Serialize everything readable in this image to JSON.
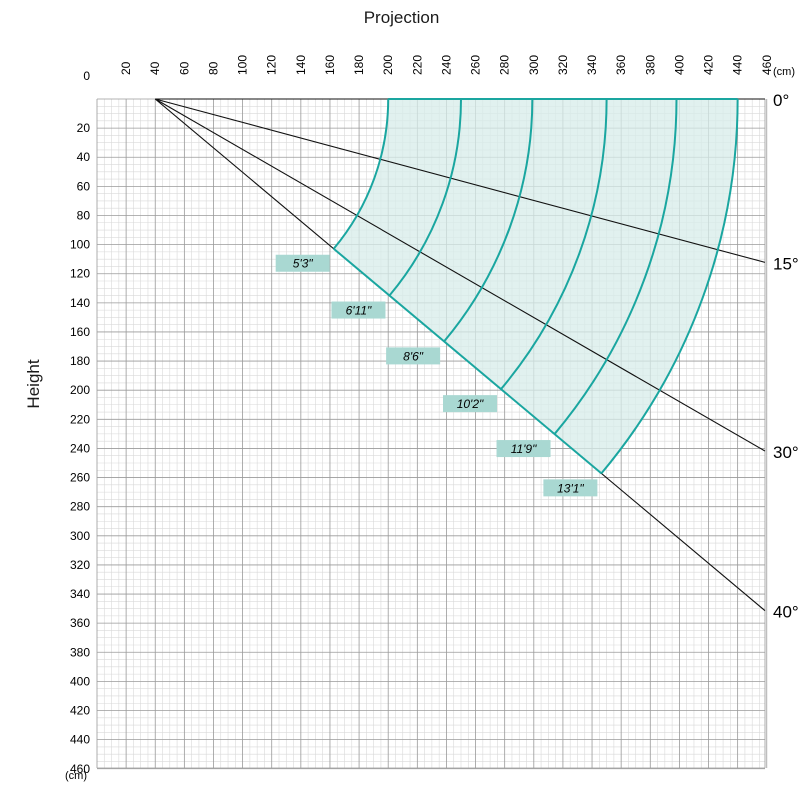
{
  "chart_data": {
    "type": "line",
    "title": "",
    "xlabel": "Projection",
    "ylabel": "Height",
    "x_unit": "(cm)",
    "y_unit": "(cm)",
    "x_ticks": [
      "20",
      "40",
      "60",
      "80",
      "100",
      "120",
      "140",
      "160",
      "180",
      "200",
      "220",
      "240",
      "260",
      "280",
      "300",
      "320",
      "340",
      "360",
      "380",
      "400",
      "420",
      "440",
      "460"
    ],
    "y_ticks": [
      "0",
      "20",
      "40",
      "60",
      "80",
      "100",
      "120",
      "140",
      "160",
      "180",
      "200",
      "220",
      "240",
      "260",
      "280",
      "300",
      "320",
      "340",
      "360",
      "380",
      "400",
      "420",
      "440",
      "460"
    ],
    "xlim": [
      0,
      460
    ],
    "ylim": [
      0,
      460
    ],
    "grid": true,
    "origin": [
      40,
      0
    ],
    "angle_lines": [
      {
        "label": "0°",
        "angle": 0
      },
      {
        "label": "15°",
        "angle": 15
      },
      {
        "label": "30°",
        "angle": 30
      },
      {
        "label": "40°",
        "angle": 40
      }
    ],
    "range_arcs": [
      {
        "label": "5'3\"",
        "radius": 160
      },
      {
        "label": "6'11\"",
        "radius": 210
      },
      {
        "label": "8'6\"",
        "radius": 259
      },
      {
        "label": "10'2\"",
        "radius": 310
      },
      {
        "label": "11'9\"",
        "radius": 358
      },
      {
        "label": "13'1\"",
        "radius": 400
      }
    ],
    "colors": {
      "accent": "#1aa6a0",
      "fill": "#d7ecea",
      "label_bg": "#a9d8d2",
      "grid": "#9a9a9a",
      "grid_minor": "#d9d9d9",
      "line": "#111111"
    }
  }
}
